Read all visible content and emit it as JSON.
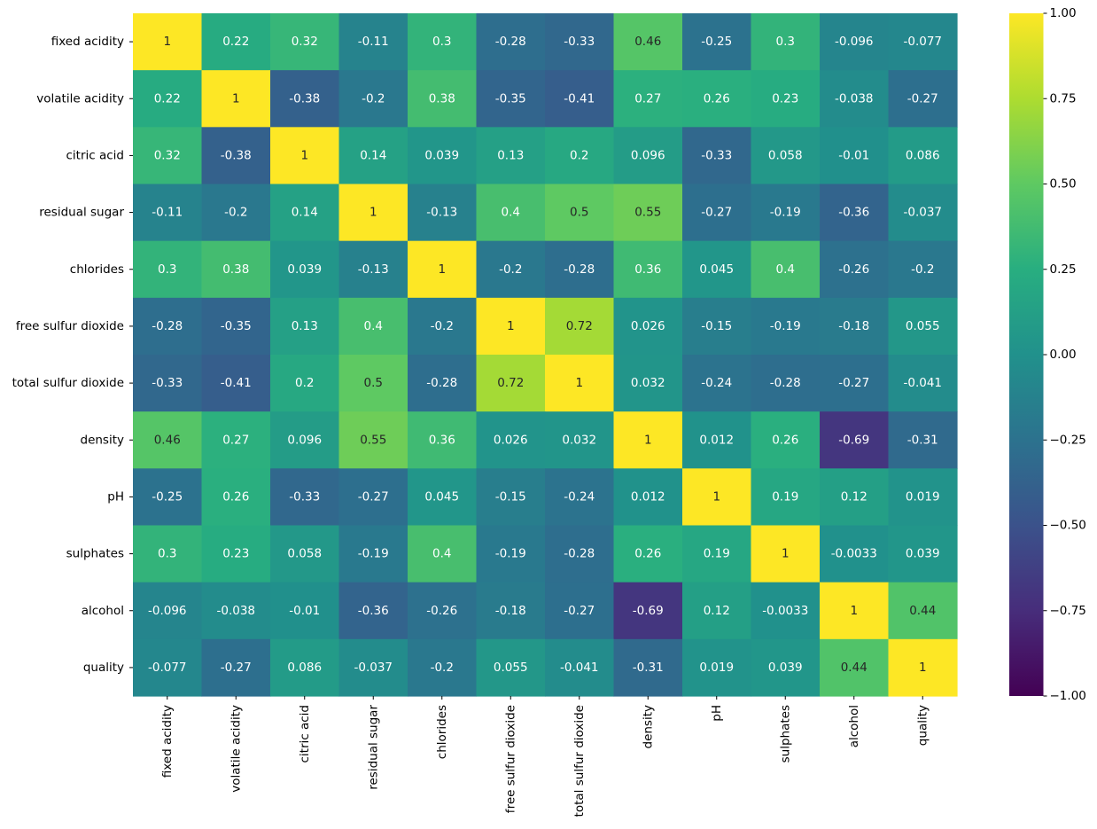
{
  "chart_data": {
    "type": "heatmap",
    "title": "",
    "xlabel": "",
    "ylabel": "",
    "colormap": "viridis",
    "vmin": -1,
    "vmax": 1,
    "annotated": true,
    "colorbar_position": "right",
    "rows": [
      "fixed acidity",
      "volatile acidity",
      "citric acid",
      "residual sugar",
      "chlorides",
      "free sulfur dioxide",
      "total sulfur dioxide",
      "density",
      "pH",
      "sulphates",
      "alcohol",
      "quality"
    ],
    "columns": [
      "fixed acidity",
      "volatile acidity",
      "citric acid",
      "residual sugar",
      "chlorides",
      "free sulfur dioxide",
      "total sulfur dioxide",
      "density",
      "pH",
      "sulphates",
      "alcohol",
      "quality"
    ],
    "values": [
      [
        1,
        0.22,
        0.32,
        -0.11,
        0.3,
        -0.28,
        -0.33,
        0.46,
        -0.25,
        0.3,
        -0.096,
        -0.077
      ],
      [
        0.22,
        1,
        -0.38,
        -0.2,
        0.38,
        -0.35,
        -0.41,
        0.27,
        0.26,
        0.23,
        -0.038,
        -0.27
      ],
      [
        0.32,
        -0.38,
        1,
        0.14,
        0.039,
        0.13,
        0.2,
        0.096,
        -0.33,
        0.058,
        -0.01,
        0.086
      ],
      [
        -0.11,
        -0.2,
        0.14,
        1,
        -0.13,
        0.4,
        0.5,
        0.55,
        -0.27,
        -0.19,
        -0.36,
        -0.037
      ],
      [
        0.3,
        0.38,
        0.039,
        -0.13,
        1,
        -0.2,
        -0.28,
        0.36,
        0.045,
        0.4,
        -0.26,
        -0.2
      ],
      [
        -0.28,
        -0.35,
        0.13,
        0.4,
        -0.2,
        1,
        0.72,
        0.026,
        -0.15,
        -0.19,
        -0.18,
        0.055
      ],
      [
        -0.33,
        -0.41,
        0.2,
        0.5,
        -0.28,
        0.72,
        1,
        0.032,
        -0.24,
        -0.28,
        -0.27,
        -0.041
      ],
      [
        0.46,
        0.27,
        0.096,
        0.55,
        0.36,
        0.026,
        0.032,
        1,
        0.012,
        0.26,
        -0.69,
        -0.31
      ],
      [
        -0.25,
        0.26,
        -0.33,
        -0.27,
        0.045,
        -0.15,
        -0.24,
        0.012,
        1,
        0.19,
        0.12,
        0.019
      ],
      [
        0.3,
        0.23,
        0.058,
        -0.19,
        0.4,
        -0.19,
        -0.28,
        0.26,
        0.19,
        1,
        -0.0033,
        0.039
      ],
      [
        -0.096,
        -0.038,
        -0.01,
        -0.36,
        -0.26,
        -0.18,
        -0.27,
        -0.69,
        0.12,
        -0.0033,
        1,
        0.44
      ],
      [
        -0.077,
        -0.27,
        0.086,
        -0.037,
        -0.2,
        0.055,
        -0.041,
        -0.31,
        0.019,
        0.039,
        0.44,
        1
      ]
    ],
    "colorbar": {
      "ticks": [
        1.0,
        0.75,
        0.5,
        0.25,
        0.0,
        -0.25,
        -0.5,
        -0.75,
        -1.0
      ],
      "tick_labels": [
        "1.00",
        "0.75",
        "0.50",
        "0.25",
        "0.00",
        "−0.25",
        "−0.50",
        "−0.75",
        "−1.00"
      ]
    }
  }
}
